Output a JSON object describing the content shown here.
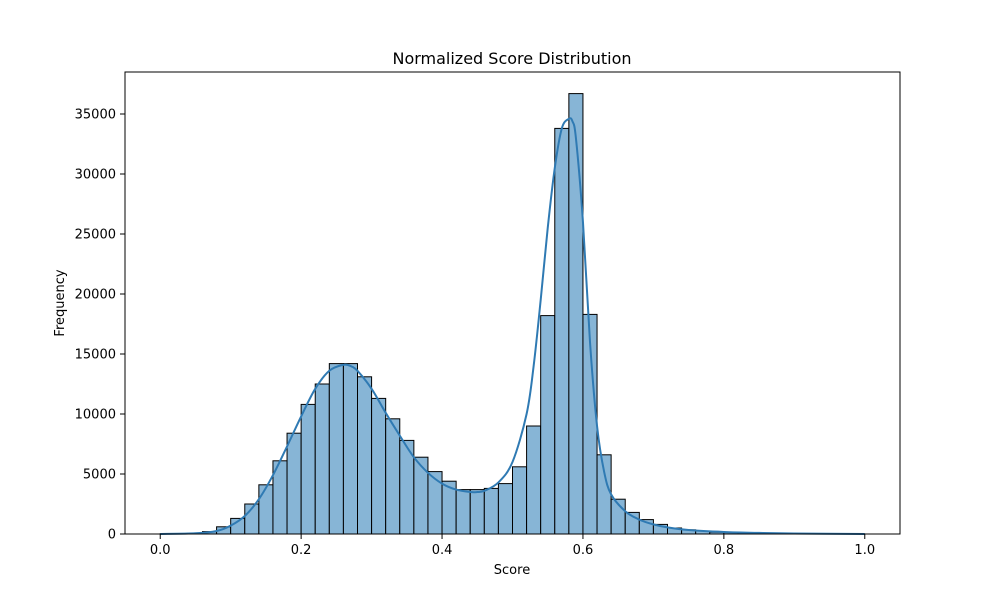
{
  "chart_data": {
    "type": "bar",
    "title": "Normalized Score Distribution",
    "xlabel": "Score",
    "ylabel": "Frequency",
    "xlim": [
      -0.05,
      1.05
    ],
    "ylim": [
      0,
      38500
    ],
    "x_ticks": [
      0.0,
      0.2,
      0.4,
      0.6,
      0.8,
      1.0
    ],
    "x_tick_labels": [
      "0.0",
      "0.2",
      "0.4",
      "0.6",
      "0.8",
      "1.0"
    ],
    "y_ticks": [
      0,
      5000,
      10000,
      15000,
      20000,
      25000,
      30000,
      35000
    ],
    "y_tick_labels": [
      "0",
      "5000",
      "10000",
      "15000",
      "20000",
      "25000",
      "30000",
      "35000"
    ],
    "grid": false,
    "bin_edges": [
      0.0,
      0.02,
      0.04,
      0.06,
      0.08,
      0.1,
      0.12,
      0.14,
      0.16,
      0.18,
      0.2,
      0.22,
      0.24,
      0.26,
      0.28,
      0.3,
      0.32,
      0.34,
      0.36,
      0.38,
      0.4,
      0.42,
      0.44,
      0.46,
      0.48,
      0.5,
      0.52,
      0.54,
      0.56,
      0.58,
      0.6,
      0.62,
      0.64,
      0.66,
      0.68,
      0.7,
      0.72,
      0.74,
      0.76,
      0.78,
      0.8,
      0.82,
      0.84,
      0.86,
      0.88,
      0.9,
      0.92,
      0.94,
      0.96,
      0.98,
      1.0
    ],
    "values": [
      20,
      40,
      80,
      200,
      600,
      1300,
      2500,
      4100,
      6100,
      8400,
      10800,
      12500,
      14200,
      14200,
      13100,
      11300,
      9600,
      7800,
      6400,
      5200,
      4400,
      3700,
      3700,
      3800,
      4200,
      5600,
      9000,
      18200,
      33800,
      36700,
      18300,
      6600,
      2900,
      1800,
      1200,
      800,
      500,
      350,
      250,
      150,
      120,
      90,
      70,
      50,
      40,
      30,
      20,
      15,
      10,
      5
    ],
    "kde": {
      "x": [
        0.0,
        0.05,
        0.08,
        0.1,
        0.12,
        0.14,
        0.16,
        0.18,
        0.2,
        0.22,
        0.24,
        0.26,
        0.27,
        0.28,
        0.3,
        0.32,
        0.34,
        0.36,
        0.38,
        0.4,
        0.42,
        0.44,
        0.45,
        0.46,
        0.48,
        0.5,
        0.52,
        0.53,
        0.54,
        0.55,
        0.56,
        0.57,
        0.58,
        0.585,
        0.59,
        0.6,
        0.61,
        0.62,
        0.63,
        0.64,
        0.66,
        0.68,
        0.7,
        0.72,
        0.75,
        0.8,
        0.85,
        0.9,
        1.0
      ],
      "y": [
        0,
        60,
        250,
        700,
        1500,
        2900,
        4900,
        7300,
        9800,
        12100,
        13600,
        14100,
        14000,
        13600,
        12100,
        10100,
        8200,
        6400,
        5100,
        4200,
        3700,
        3500,
        3500,
        3600,
        4300,
        6000,
        10000,
        14000,
        19500,
        25500,
        30500,
        33800,
        34600,
        34400,
        33000,
        26000,
        16000,
        9000,
        5200,
        3300,
        1900,
        1200,
        800,
        550,
        330,
        170,
        90,
        40,
        0
      ]
    },
    "colors": {
      "bar_fill": "#87b5d6",
      "bar_edge": "#000000",
      "kde_line": "#2f7ab3"
    }
  }
}
